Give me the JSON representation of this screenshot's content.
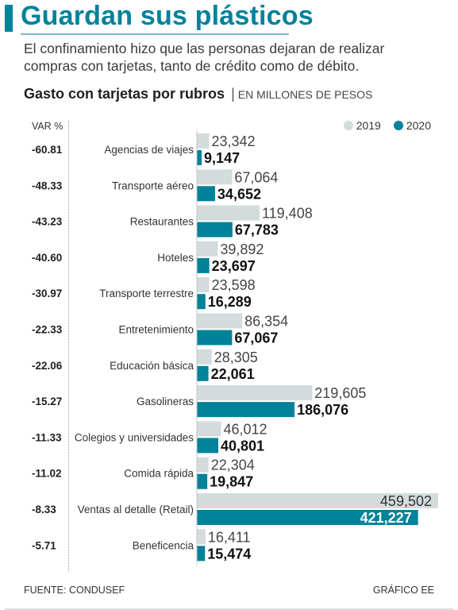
{
  "header": {
    "title": "Guardan sus plásticos",
    "intro": "El confinamiento hizo que las personas dejaran de realizar compras con tarjetas, tanto de crédito como de débito."
  },
  "chart_data": {
    "type": "bar",
    "orientation": "horizontal",
    "title": "Gasto con tarjetas por rubros",
    "subtitle": "EN MILLONES DE PESOS",
    "variation_label": "VAR %",
    "categories": [
      "Agencias de viajes",
      "Transporte aéreo",
      "Restaurantes",
      "Hoteles",
      "Transporte terrestre",
      "Entretenimiento",
      "Educación básica",
      "Gasolineras",
      "Colegios y universidades",
      "Comida rápida",
      "Ventas al detalle (Retail)",
      "Beneficencia"
    ],
    "variation": [
      "-60.81",
      "-48.33",
      "-43.23",
      "-40.60",
      "-30.97",
      "-22.33",
      "-22.06",
      "-15.27",
      "-11.33",
      "-11.02",
      "-8.33",
      "-5.71"
    ],
    "series": [
      {
        "name": "2019",
        "color": "#d3dbdd",
        "values": [
          23342,
          67064,
          119408,
          39892,
          23598,
          86354,
          28305,
          219605,
          46012,
          22304,
          459502,
          16411
        ],
        "labels": [
          "23,342",
          "67,064",
          "119,408",
          "39,892",
          "23,598",
          "86,354",
          "28,305",
          "219,605",
          "46,012",
          "22,304",
          "459,502",
          "16,411"
        ]
      },
      {
        "name": "2020",
        "color": "#00829a",
        "values": [
          9147,
          34652,
          67783,
          23697,
          16289,
          67067,
          22061,
          186076,
          40801,
          19847,
          421227,
          15474
        ],
        "labels": [
          "9,147",
          "34,652",
          "67,783",
          "23,697",
          "16,289",
          "67,067",
          "22,061",
          "186,076",
          "40,801",
          "19,847",
          "421,227",
          "15,474"
        ]
      }
    ],
    "xlim": [
      0,
      459502
    ],
    "grid": false,
    "legend_position": "top-right"
  },
  "footer": {
    "source": "FUENTE: CONDUSEF",
    "credit": "GRÁFICO EE"
  },
  "colors": {
    "accent": "#00829a",
    "bar_2019": "#d3dbdd",
    "bar_2020": "#00829a"
  }
}
